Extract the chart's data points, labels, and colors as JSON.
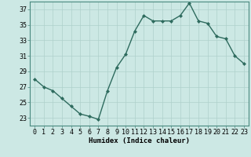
{
  "x": [
    0,
    1,
    2,
    3,
    4,
    5,
    6,
    7,
    8,
    9,
    10,
    11,
    12,
    13,
    14,
    15,
    16,
    17,
    18,
    19,
    20,
    21,
    22,
    23
  ],
  "y": [
    28,
    27,
    26.5,
    25.5,
    24.5,
    23.5,
    23.2,
    22.8,
    26.5,
    29.5,
    31.2,
    34.2,
    36.2,
    35.5,
    35.5,
    35.5,
    36.2,
    37.8,
    35.5,
    35.2,
    33.5,
    33.2,
    31,
    30
  ],
  "line_color": "#2e6b5e",
  "marker": "D",
  "marker_size": 2.0,
  "background_color": "#cce8e4",
  "grid_color": "#aed0cb",
  "xlabel": "Humidex (Indice chaleur)",
  "ylabel": "",
  "ylim": [
    22.0,
    38.0
  ],
  "xlim": [
    -0.5,
    23.5
  ],
  "yticks": [
    23,
    25,
    27,
    29,
    31,
    33,
    35,
    37
  ],
  "xticks": [
    0,
    1,
    2,
    3,
    4,
    5,
    6,
    7,
    8,
    9,
    10,
    11,
    12,
    13,
    14,
    15,
    16,
    17,
    18,
    19,
    20,
    21,
    22,
    23
  ],
  "xlabel_fontsize": 6.5,
  "tick_fontsize": 6.0,
  "line_width": 1.0
}
